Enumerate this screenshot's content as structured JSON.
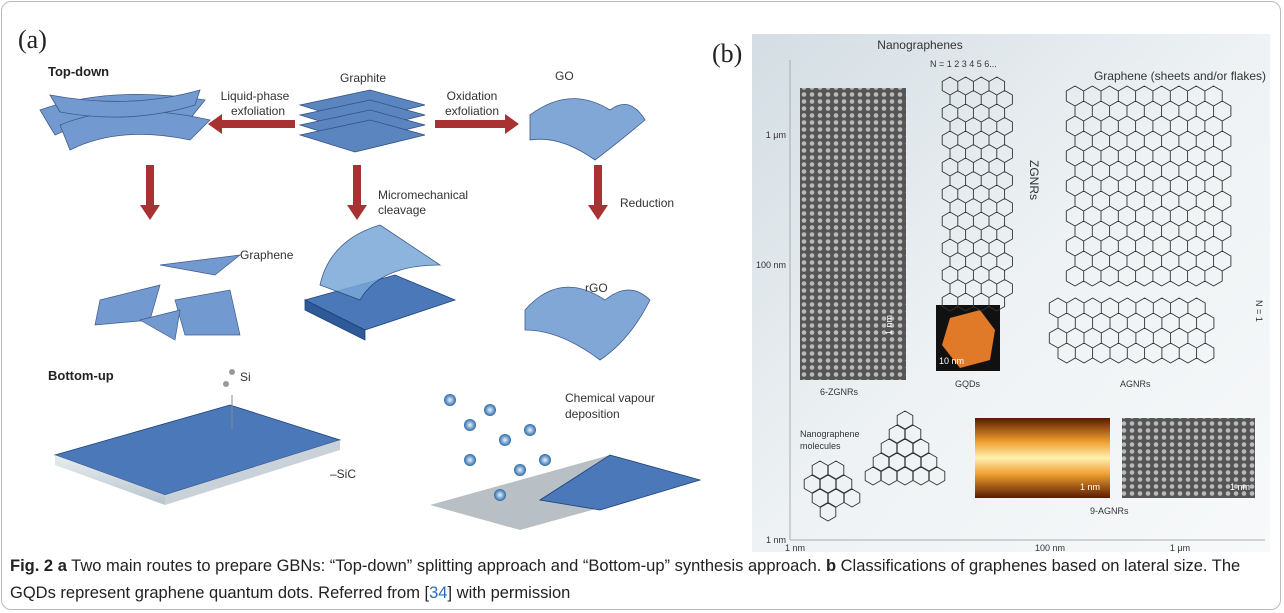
{
  "panel_a": {
    "label": "(a)",
    "top_down": "Top-down",
    "graphite": "Graphite",
    "liquid_phase": [
      "Liquid-phase",
      "exfoliation"
    ],
    "oxidation": [
      "Oxidation",
      "exfoliation"
    ],
    "go": "GO",
    "micromechanical": [
      "Micromechanical",
      "cleavage"
    ],
    "reduction": "Reduction",
    "graphene": "Graphene",
    "rgo": "rGO",
    "bottom_up": "Bottom-up",
    "si": "Si",
    "sic": "–SiC",
    "cvd": [
      "Chemical vapour",
      "deposition"
    ]
  },
  "panel_b": {
    "label": "(b)",
    "nanographenes": "Nanographenes",
    "n_index": "N = 1 2   3 4   5 6...",
    "graphene_sheets": "Graphene (sheets and/or flakes)",
    "zgnrs": "ZGNRs",
    "y_axis": [
      "1 μm",
      "100 nm",
      "1 nm"
    ],
    "x_axis": [
      "1 nm",
      "100 nm",
      "1 μm"
    ],
    "six_zgnrs": "6-ZGNRs",
    "scale_zgnr": "1 nm",
    "scale_gqd": "10 nm",
    "gqds": "GQDs",
    "agnrs": "AGNRs",
    "agnr_n": "N = 1",
    "molecules": [
      "Nanographene",
      "molecules"
    ],
    "scale_agnr_1": "1 nm",
    "scale_agnr_2": "1 nm",
    "nine_agnrs": "9-AGNRs"
  },
  "caption": {
    "label": "Fig. 2",
    "a": "a",
    "a_text": " Two main routes to prepare GBNs: “Top-down” splitting approach and “Bottom-up” synthesis approach. ",
    "b": "b",
    "b_text": " Classifications of graphenes based on lateral size. The GQDs represent graphene quantum dots. Referred from [",
    "ref": "34",
    "end": "] with permission"
  }
}
